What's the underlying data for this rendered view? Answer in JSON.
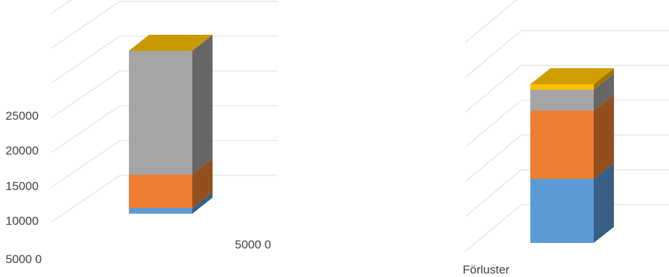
{
  "chart_data": [
    {
      "type": "bar",
      "stacked": true,
      "three_d": true,
      "categories": [
        ""
      ],
      "series": [
        {
          "values": [
            800
          ],
          "color": "#5b9bd5"
        },
        {
          "values": [
            4800
          ],
          "color": "#ed7d31"
        },
        {
          "values": [
            17800
          ],
          "color": "#a5a5a5"
        },
        {
          "values": [
            0
          ],
          "color": "#ffc000"
        }
      ],
      "y_tick_labels": [
        "5000 0",
        "10000",
        "15000",
        "20000",
        "25000"
      ],
      "extra_label": "5000 0",
      "grid": true
    },
    {
      "type": "bar",
      "stacked": true,
      "three_d": true,
      "categories": [
        "Förluster"
      ],
      "series": [
        {
          "values": [
            9200
          ],
          "color": "#5b9bd5"
        },
        {
          "values": [
            9800
          ],
          "color": "#ed7d31"
        },
        {
          "values": [
            3000
          ],
          "color": "#a5a5a5"
        },
        {
          "values": [
            800
          ],
          "color": "#ffc000"
        }
      ],
      "grid": true
    }
  ]
}
